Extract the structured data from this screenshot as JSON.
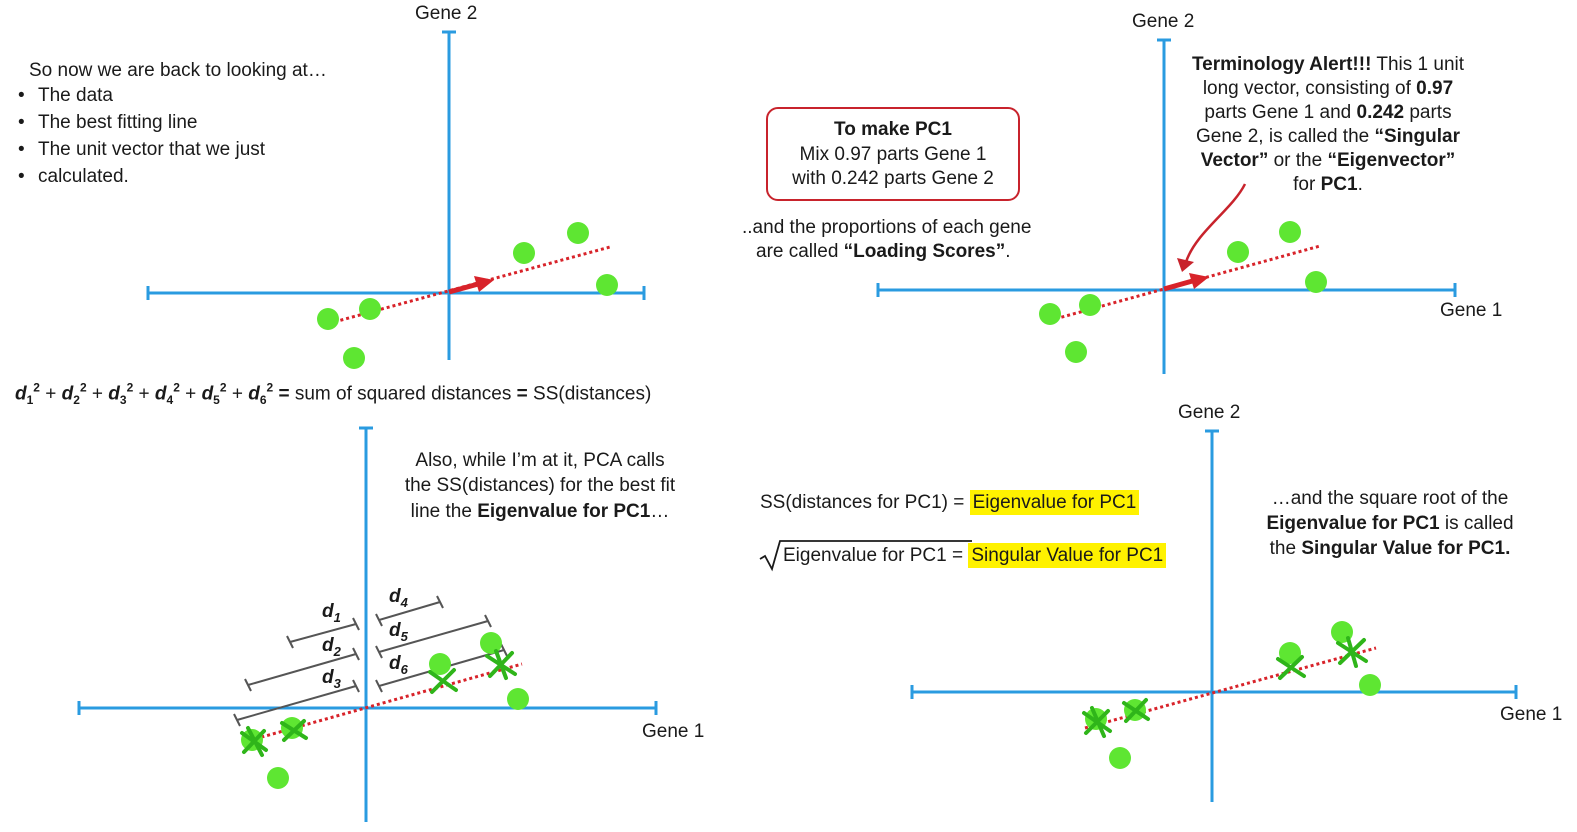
{
  "colors": {
    "axis": "#2a9be0",
    "point": "#5ee632",
    "line": "#d8232a",
    "arrow": "#d8232a",
    "bracket": "#555555",
    "highlight": "#fff200",
    "box": "#c8232c",
    "xmark": "#2fb51a"
  },
  "panel_tl": {
    "y_axis_label": "Gene 2",
    "intro": "So now we are back to looking at…",
    "bullets": [
      "The data",
      "The best fitting line",
      "The unit vector that we just",
      "calculated."
    ]
  },
  "panel_tr": {
    "y_axis_label": "Gene 2",
    "x_axis_label": "Gene 1",
    "box_title": "To make PC1",
    "box_line1": "Mix 0.97 parts Gene 1",
    "box_line2": "with 0.242 parts Gene 2",
    "loading_line1": "..and the proportions of each gene",
    "loading_line2_pre": "are called ",
    "loading_line2_bold": "“Loading Scores”",
    "loading_line2_post": ".",
    "alert": {
      "l1_bold": "Terminology Alert!!!",
      "l1_rest": " This 1 unit",
      "l2_pre": "long vector, consisting of ",
      "l2_bold": "0.97",
      "l3_pre": "parts Gene 1 and ",
      "l3_bold": "0.242",
      "l3_post": " parts",
      "l4_pre": "Gene 2, is called the ",
      "l4_bold": "“Singular",
      "l5_bold1": "Vector”",
      "l5_mid": " or the ",
      "l5_bold2": "“Eigenvector”",
      "l6_pre": "for ",
      "l6_bold": "PC1",
      "l6_post": "."
    }
  },
  "formula": {
    "terms": [
      "d1",
      "d2",
      "d3",
      "d4",
      "d5",
      "d6"
    ],
    "equals_text": " = ",
    "middle_text": " sum of squared distances ",
    "bold_equals": "=",
    "right_text": " SS(distances)"
  },
  "panel_bl": {
    "x_axis_label": "Gene 1",
    "note_l1": "Also, while I’m at it, PCA calls",
    "note_l2": "the SS(distances) for the best fit",
    "note_l3_pre": "line the ",
    "note_l3_bold": "Eigenvalue for PC1",
    "note_l3_post": "…",
    "distance_labels": [
      "d1",
      "d2",
      "d3",
      "d4",
      "d5",
      "d6"
    ]
  },
  "panel_br": {
    "y_axis_label": "Gene 2",
    "x_axis_label": "Gene 1",
    "eq1_left": "SS(distances for PC1) =",
    "eq1_right": "Eigenvalue for PC1",
    "eq2_left": "Eigenvalue for PC1 =",
    "eq2_right": "Singular Value for PC1",
    "note_l1": "…and the square root of the",
    "note_l2_bold": "Eigenvalue for PC1",
    "note_l2_post": " is called",
    "note_l3_pre": "the ",
    "note_l3_bold": "Singular Value for PC1."
  }
}
